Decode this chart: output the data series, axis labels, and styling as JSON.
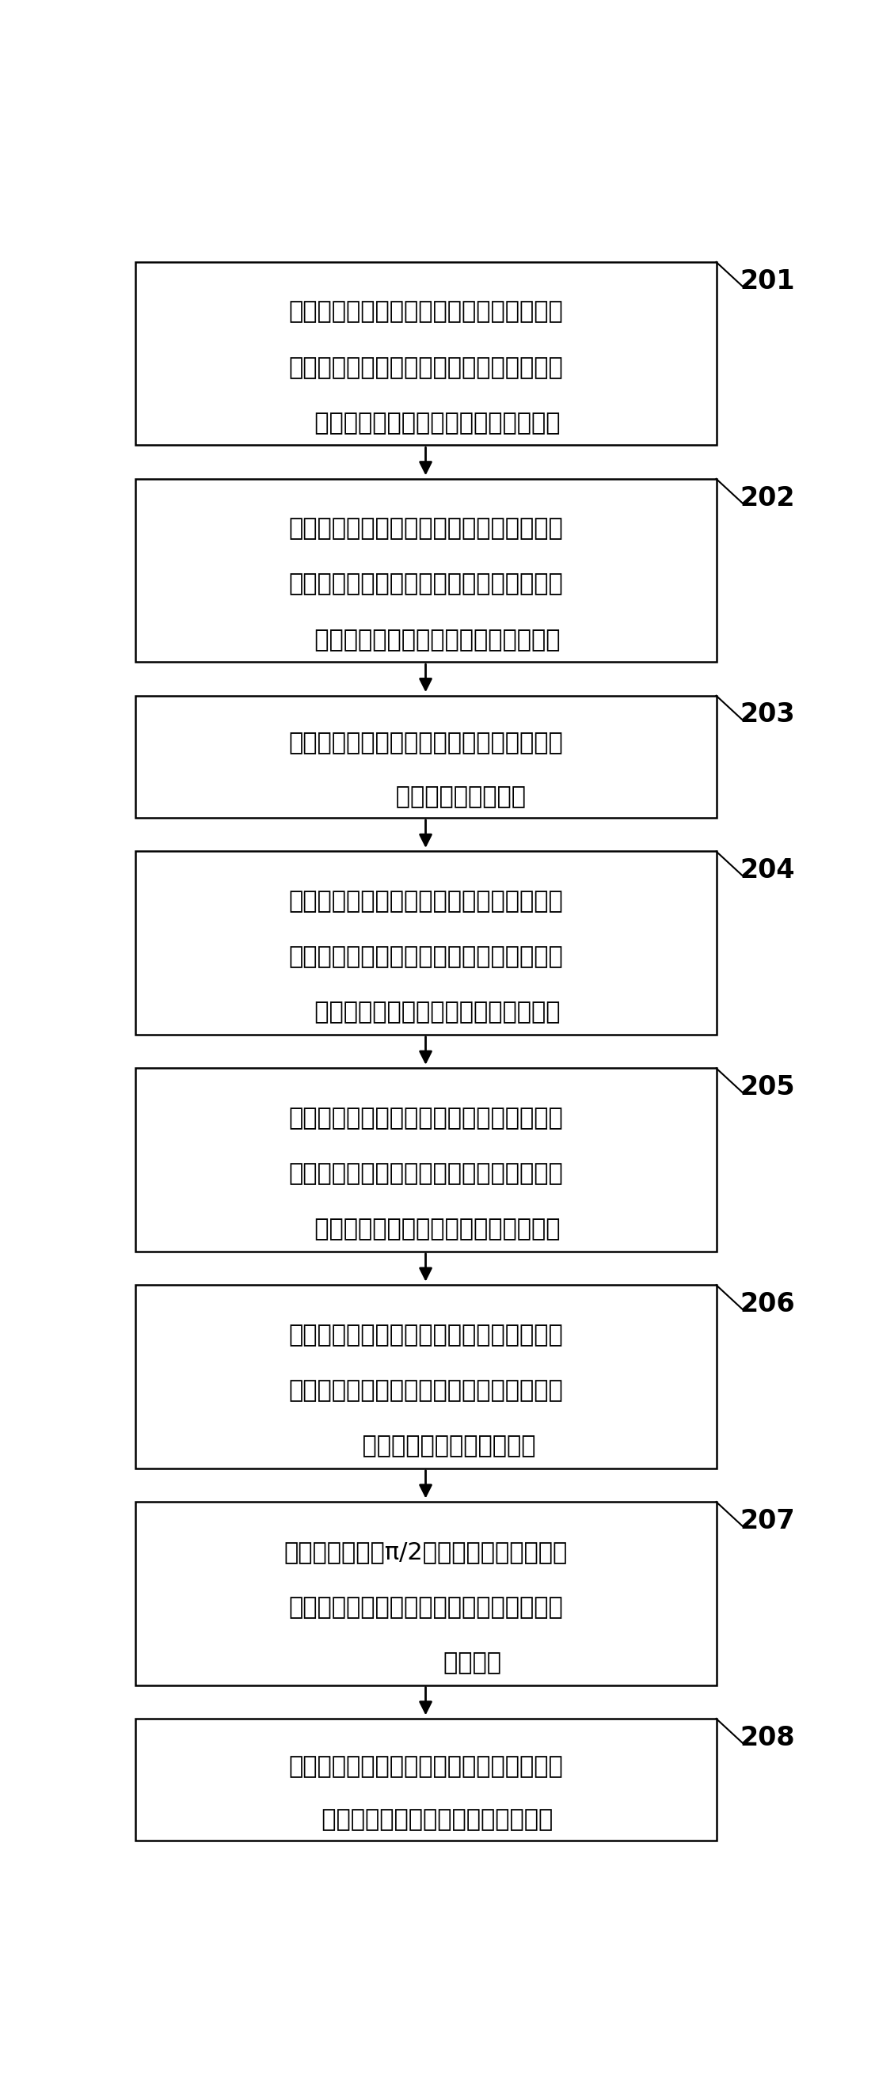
{
  "boxes": [
    {
      "id": "201",
      "lines": [
        "第一图像传感器在电子设备的控制下接收第",
        "一成像偏振光，并形成第一相移干涉图，该",
        "   第一相移干涉图的相移量为参考相移量"
      ],
      "step": "201",
      "nlines": 3
    },
    {
      "id": "202",
      "lines": [
        "第二图像传感器在电子设备的控制下接收第",
        "三成像偏振光，并形成第三相移干涉图，该",
        "   第三相移干涉图的相移量为空域相移量"
      ],
      "step": "202",
      "nlines": 3
    },
    {
      "id": "203",
      "lines": [
        "空间光调制器在电子设备的控制下进行光调",
        "         制，得到时域相移量"
      ],
      "step": "203",
      "nlines": 2
    },
    {
      "id": "204",
      "lines": [
        "第一图像传感器在电子设备的控制下接收第",
        "二成像偏振光，并形成第二相移干涉图，该",
        "   第二相移干涉图的相移量为时域相移量"
      ],
      "step": "204",
      "nlines": 3
    },
    {
      "id": "205",
      "lines": [
        "第二图像传感器在电子设备的控制下接收第",
        "四成像偏振光，并形成第四相移干涉图，该",
        "   第四相移干涉图的相移量为综合相移量"
      ],
      "step": "205",
      "nlines": 3
    },
    {
      "id": "206",
      "lines": [
        "电子设备获取第一相移干涉图、第二相移干",
        "涉图、第三相移干涉图、第四相移干涉图、",
        "      空域相移量以及时域相移量"
      ],
      "step": "206",
      "nlines": 3
    },
    {
      "id": "207",
      "lines": [
        "当空域相移量为π/2时，电子设备将同一图",
        "像传感器采集到的两幅相移干涉图进行相减",
        "            去除背景"
      ],
      "step": "207",
      "nlines": 3
    },
    {
      "id": "208",
      "lines": [
        "电子设备通过下面的反正切函数得到待测相",
        "   位，上述待测相位为待测物品的相位"
      ],
      "step": "208",
      "nlines": 2
    }
  ],
  "box_color": "#ffffff",
  "border_color": "#000000",
  "arrow_color": "#000000",
  "step_label_color": "#000000",
  "background_color": "#ffffff",
  "font_size": 22,
  "step_font_size": 24
}
